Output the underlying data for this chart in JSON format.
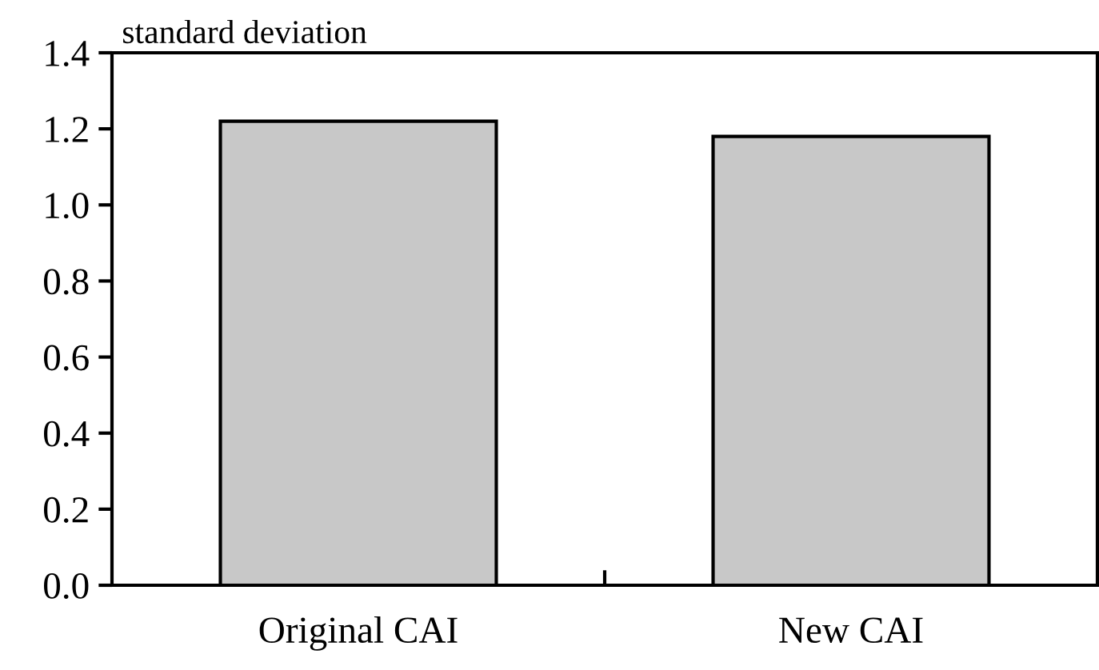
{
  "chart_data": {
    "type": "bar",
    "ylabel": "standard deviation",
    "categories": [
      "Original CAI",
      "New CAI"
    ],
    "values": [
      1.22,
      1.18
    ],
    "color": "#c8c8c8",
    "ylim": [
      0,
      1.4
    ],
    "yticks": [
      {
        "value": 0,
        "label": "0.0"
      },
      {
        "value": 0.2,
        "label": "0.2"
      },
      {
        "value": 0.4,
        "label": "0.4"
      },
      {
        "value": 0.6,
        "label": "0.6"
      },
      {
        "value": 0.8,
        "label": "0.8"
      },
      {
        "value": 1.0,
        "label": "1.0"
      },
      {
        "value": 1.2,
        "label": "1.2"
      },
      {
        "value": 1.4,
        "label": "1.4"
      }
    ],
    "grid": false,
    "legend": false
  }
}
